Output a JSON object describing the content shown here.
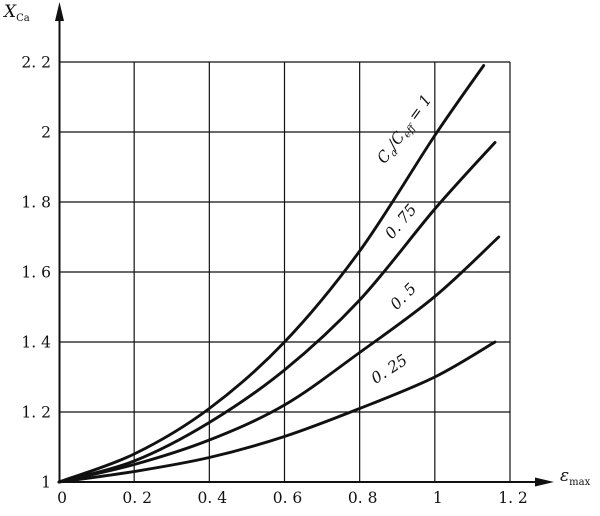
{
  "labels": {
    "y_main": "X",
    "y_sub": "Ca",
    "x_main": "ε",
    "x_sub": "max"
  },
  "chart_data": {
    "type": "line",
    "title": "",
    "xlabel": "ε_max",
    "ylabel": "X_Ca",
    "xlim": [
      0,
      1.2
    ],
    "ylim": [
      1,
      2.2
    ],
    "grid": true,
    "x_ticks": [
      0,
      0.2,
      0.4,
      0.6,
      0.8,
      1.0,
      1.2
    ],
    "x_tick_labels": [
      "0",
      "0. 2",
      "0. 4",
      "0. 6",
      "0. 8",
      "1",
      "1. 2"
    ],
    "y_ticks": [
      1,
      1.2,
      1.4,
      1.6,
      1.8,
      2.0,
      2.2
    ],
    "y_tick_labels": [
      "1",
      "1. 2",
      "1. 4",
      "1. 6",
      "1. 8",
      "2",
      "2. 2"
    ],
    "series": [
      {
        "name": "Ca/Ceff = 1",
        "points": [
          [
            0,
            1
          ],
          [
            0.2,
            1.08
          ],
          [
            0.4,
            1.21
          ],
          [
            0.6,
            1.4
          ],
          [
            0.8,
            1.66
          ],
          [
            1.0,
            1.99
          ],
          [
            1.13,
            2.19
          ]
        ],
        "label": {
          "parts": [
            {
              "t": "C"
            },
            {
              "t": "a",
              "sub": true
            },
            {
              "t": "/C"
            },
            {
              "t": "eff",
              "sub": true
            },
            {
              "t": " = 1"
            }
          ],
          "x": 0.93,
          "y": 2.0,
          "angle": -54
        }
      },
      {
        "name": "Ca/Ceff = 0.75",
        "points": [
          [
            0,
            1
          ],
          [
            0.2,
            1.06
          ],
          [
            0.4,
            1.17
          ],
          [
            0.6,
            1.32
          ],
          [
            0.8,
            1.52
          ],
          [
            1.0,
            1.78
          ],
          [
            1.16,
            1.97
          ]
        ],
        "label": {
          "parts": [
            {
              "t": "0. 75"
            }
          ],
          "x": 0.92,
          "y": 1.735,
          "angle": -50
        }
      },
      {
        "name": "Ca/Ceff = 0.5",
        "points": [
          [
            0,
            1
          ],
          [
            0.2,
            1.05
          ],
          [
            0.4,
            1.12
          ],
          [
            0.6,
            1.22
          ],
          [
            0.8,
            1.37
          ],
          [
            1.0,
            1.53
          ],
          [
            1.17,
            1.7
          ]
        ],
        "label": {
          "parts": [
            {
              "t": "0. 5"
            }
          ],
          "x": 0.926,
          "y": 1.52,
          "angle": -46
        }
      },
      {
        "name": "Ca/Ceff = 0.25",
        "points": [
          [
            0,
            1
          ],
          [
            0.2,
            1.03
          ],
          [
            0.4,
            1.07
          ],
          [
            0.6,
            1.13
          ],
          [
            0.8,
            1.21
          ],
          [
            1.0,
            1.3
          ],
          [
            1.16,
            1.4
          ]
        ],
        "label": {
          "parts": [
            {
              "t": "0. 25"
            }
          ],
          "x": 0.886,
          "y": 1.31,
          "angle": -33
        }
      }
    ]
  }
}
